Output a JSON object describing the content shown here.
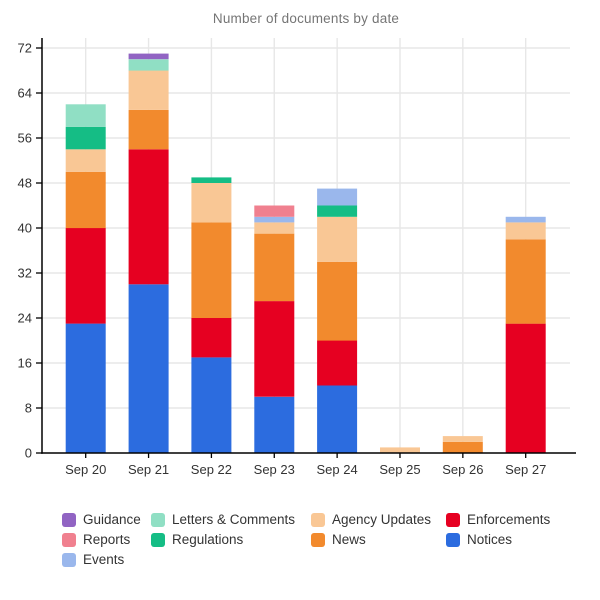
{
  "title": "Number of documents by date",
  "chart_data": {
    "type": "bar",
    "stacked": true,
    "title": "Number of documents by date",
    "xlabel": "",
    "ylabel": "",
    "categories": [
      "Sep 20",
      "Sep 21",
      "Sep 22",
      "Sep 23",
      "Sep 24",
      "Sep 25",
      "Sep 26",
      "Sep 27"
    ],
    "series": [
      {
        "name": "Notices",
        "color": "#2c6cdf",
        "values": [
          23,
          30,
          17,
          10,
          12,
          0,
          0,
          0
        ]
      },
      {
        "name": "Enforcements",
        "color": "#e60021",
        "values": [
          17,
          24,
          7,
          17,
          8,
          0,
          0,
          23
        ]
      },
      {
        "name": "News",
        "color": "#f28a2d",
        "values": [
          10,
          7,
          17,
          12,
          14,
          0,
          2,
          15
        ]
      },
      {
        "name": "Agency Updates",
        "color": "#f9c795",
        "values": [
          4,
          7,
          7,
          2,
          8,
          1,
          1,
          3
        ]
      },
      {
        "name": "Regulations",
        "color": "#15bd85",
        "values": [
          4,
          0,
          1,
          0,
          2,
          0,
          0,
          0
        ]
      },
      {
        "name": "Letters & Comments",
        "color": "#90dfc4",
        "values": [
          4,
          2,
          0,
          0,
          0,
          0,
          0,
          0
        ]
      },
      {
        "name": "Events",
        "color": "#9ab7ec",
        "values": [
          0,
          0,
          0,
          1,
          3,
          0,
          0,
          1
        ]
      },
      {
        "name": "Reports",
        "color": "#f0808f",
        "values": [
          0,
          0,
          0,
          2,
          0,
          0,
          0,
          0
        ]
      },
      {
        "name": "Guidance",
        "color": "#9164c3",
        "values": [
          0,
          1,
          0,
          0,
          0,
          0,
          0,
          0
        ]
      }
    ],
    "bar_totals": [
      62,
      71,
      49,
      44,
      47,
      1,
      3,
      42
    ],
    "y_ticks": [
      0,
      8,
      16,
      24,
      32,
      40,
      48,
      56,
      64,
      72
    ],
    "ylim": [
      0,
      72
    ],
    "grid": true,
    "legend_position": "bottom",
    "legend_order": [
      "Guidance",
      "Letters & Comments",
      "Agency Updates",
      "Enforcements",
      "Reports",
      "Regulations",
      "News",
      "Notices",
      "Events"
    ]
  },
  "colors": {
    "title_text": "#757575",
    "axis_text": "#333333",
    "gridline": "#e7e7e7",
    "axis_line": "#000000",
    "background": "#ffffff"
  }
}
